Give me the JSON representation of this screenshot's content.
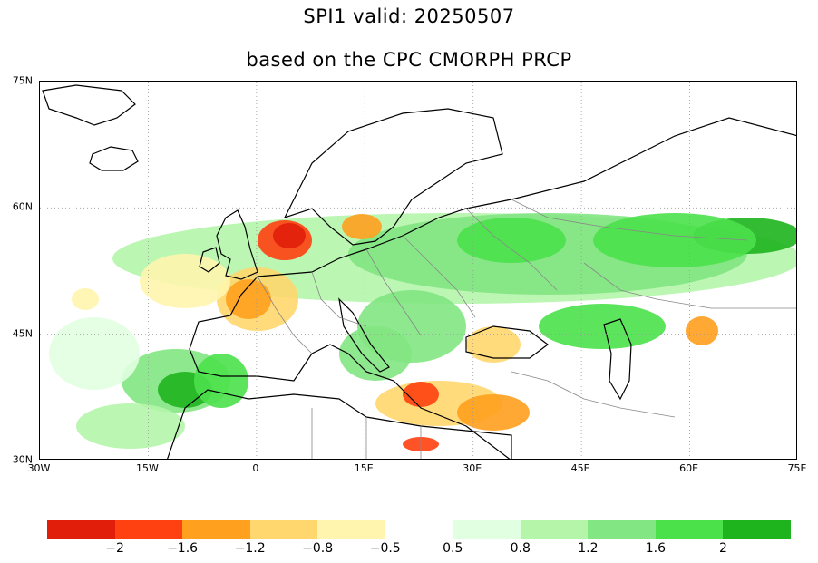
{
  "title": {
    "line1": "SPI1   valid: 20250507",
    "line2": "based on the CPC CMORPH PRCP"
  },
  "axes": {
    "lat_labels": [
      "75N",
      "60N",
      "45N",
      "30N"
    ],
    "lon_labels": [
      "30W",
      "15W",
      "0",
      "15E",
      "30E",
      "45E",
      "60E",
      "75E"
    ],
    "lat_values": [
      75,
      60,
      45,
      30
    ],
    "lon_values": [
      -30,
      -15,
      0,
      15,
      30,
      45,
      60,
      75
    ],
    "lon_range": [
      -30,
      75
    ],
    "lat_range": [
      30,
      75
    ]
  },
  "legend": {
    "labels": [
      "−2",
      "−1.6",
      "−1.2",
      "−0.8",
      "−0.5",
      "0.5",
      "0.8",
      "1.2",
      "1.6",
      "2"
    ],
    "colors": [
      "#e01e0a",
      "#ff4010",
      "#ffa01e",
      "#ffd76e",
      "#fff5ae",
      "#ffffff",
      "#e1ffe1",
      "#b4f5aa",
      "#82e682",
      "#4be14b",
      "#1eb41e"
    ]
  },
  "map_colors": {
    "dry_extreme": "#e01e0a",
    "dry_severe": "#ff4010",
    "dry_moderate": "#ffa01e",
    "dry_mild": "#ffd76e",
    "dry_weak": "#fff5ae",
    "wet_weak": "#e1ffe1",
    "wet_mild": "#b4f5aa",
    "wet_moderate": "#82e682",
    "wet_severe": "#4be14b",
    "wet_extreme": "#1eb41e",
    "coast": "#000000",
    "borders": "#888888"
  }
}
